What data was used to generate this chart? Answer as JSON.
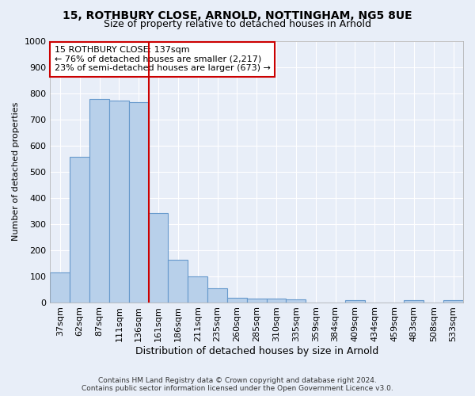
{
  "title1": "15, ROTHBURY CLOSE, ARNOLD, NOTTINGHAM, NG5 8UE",
  "title2": "Size of property relative to detached houses in Arnold",
  "xlabel": "Distribution of detached houses by size in Arnold",
  "ylabel": "Number of detached properties",
  "categories": [
    "37sqm",
    "62sqm",
    "87sqm",
    "111sqm",
    "136sqm",
    "161sqm",
    "186sqm",
    "211sqm",
    "235sqm",
    "260sqm",
    "285sqm",
    "310sqm",
    "335sqm",
    "359sqm",
    "384sqm",
    "409sqm",
    "434sqm",
    "459sqm",
    "483sqm",
    "508sqm",
    "533sqm"
  ],
  "values": [
    113,
    557,
    778,
    770,
    765,
    342,
    163,
    98,
    52,
    18,
    14,
    13,
    12,
    0,
    0,
    9,
    0,
    0,
    9,
    0,
    9
  ],
  "bar_color": "#b8d0ea",
  "bar_edge_color": "#6699cc",
  "vline_x_index": 4,
  "vline_color": "#cc0000",
  "annotation_text": "15 ROTHBURY CLOSE: 137sqm\n← 76% of detached houses are smaller (2,217)\n23% of semi-detached houses are larger (673) →",
  "annotation_box_color": "#ffffff",
  "annotation_box_edge_color": "#cc0000",
  "ylim": [
    0,
    1000
  ],
  "yticks": [
    0,
    100,
    200,
    300,
    400,
    500,
    600,
    700,
    800,
    900,
    1000
  ],
  "footer1": "Contains HM Land Registry data © Crown copyright and database right 2024.",
  "footer2": "Contains public sector information licensed under the Open Government Licence v3.0.",
  "bg_color": "#e8eef8",
  "grid_color": "#ffffff",
  "title1_fontsize": 10,
  "title2_fontsize": 9,
  "xlabel_fontsize": 9,
  "ylabel_fontsize": 8,
  "tick_fontsize": 8,
  "annotation_fontsize": 8,
  "footer_fontsize": 6.5
}
